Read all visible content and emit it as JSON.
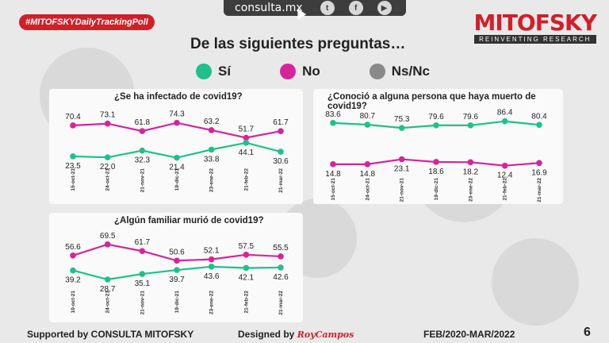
{
  "header": {
    "site": "consulta.mx",
    "social": [
      {
        "icon": "twitter-icon",
        "glyph": "t"
      },
      {
        "icon": "facebook-icon",
        "glyph": "f"
      },
      {
        "icon": "youtube-icon",
        "glyph": "▶"
      }
    ],
    "tag": "#MITOFSKYDailyTrackingPoll",
    "brand_name": "MITOFSKY",
    "brand_sub": "REINVENTING RESEARCH",
    "question": "De las siguientes preguntas…"
  },
  "legend": [
    {
      "label": "Sí",
      "color": "#1fc08c"
    },
    {
      "label": "No",
      "color": "#d6249a"
    },
    {
      "label": "Ns/Nc",
      "color": "#8a8a8a"
    }
  ],
  "chart_data": [
    {
      "type": "line",
      "title": "¿Se ha infectado de covid19?",
      "categories": [
        "15-oct-21",
        "24-oct-21",
        "21-nov-21",
        "19-dic-21",
        "23-ene-22",
        "21-feb-22",
        "21-mar-22"
      ],
      "series": [
        {
          "name": "No",
          "color": "#d6249a",
          "values": [
            70.4,
            73.1,
            61.8,
            74.3,
            63.2,
            51.7,
            61.7
          ]
        },
        {
          "name": "Sí",
          "color": "#1fc08c",
          "values": [
            23.5,
            22.0,
            32.3,
            21.4,
            33.8,
            44.1,
            30.6
          ]
        }
      ]
    },
    {
      "type": "line",
      "title": "¿Conoció a alguna persona que haya muerto de covid19?",
      "categories": [
        "15-oct-21",
        "24-oct-21",
        "21-nov-21",
        "19-dic-21",
        "23-ene-22",
        "21-feb-22",
        "21-mar-22"
      ],
      "series": [
        {
          "name": "Sí",
          "color": "#1fc08c",
          "values": [
            83.6,
            80.7,
            75.3,
            79.6,
            79.6,
            86.4,
            80.4
          ]
        },
        {
          "name": "No",
          "color": "#d6249a",
          "values": [
            14.8,
            14.8,
            23.1,
            18.6,
            18.2,
            12.4,
            16.9
          ]
        }
      ]
    },
    {
      "type": "line",
      "title": "¿Algún familiar murió de covid19?",
      "categories": [
        "10-oct-21",
        "24-oct-21",
        "21-nov-21",
        "19-dic-21",
        "23-ene-22",
        "21-feb-22",
        "21-mar-22"
      ],
      "series": [
        {
          "name": "No",
          "color": "#d6249a",
          "values": [
            56.6,
            69.5,
            61.7,
            50.6,
            52.1,
            57.5,
            55.5
          ]
        },
        {
          "name": "Sí",
          "color": "#1fc08c",
          "values": [
            39.2,
            28.7,
            35.1,
            39.7,
            43.6,
            42.1,
            42.6
          ]
        }
      ]
    }
  ],
  "footer": {
    "supported": "Supported by   CONSULTA   MITOFSKY",
    "designed": "Designed by",
    "designer": "RoyCampos",
    "period": "FEB/2020-MAR/2022",
    "page": "6"
  }
}
